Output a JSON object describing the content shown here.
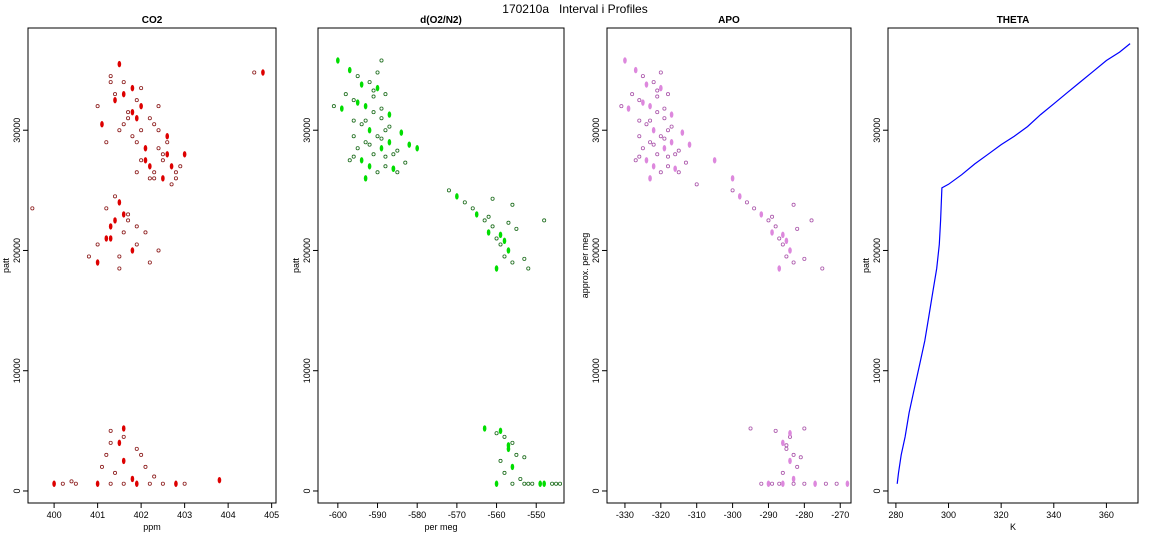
{
  "title": "170210a   Interval i Profiles",
  "chart_data": [
    {
      "type": "scatter",
      "title": "CO2",
      "xlabel": "ppm",
      "ylabel": "patt",
      "xlim": [
        399.4,
        405.1
      ],
      "ylim": [
        -1000,
        38500
      ],
      "xticks": [
        400,
        401,
        402,
        403,
        404,
        405
      ],
      "yticks": [
        0,
        10000,
        20000,
        30000
      ],
      "color": "#dd0000",
      "open_color": "#8b1a1a",
      "x": [
        401.5,
        401.3,
        401.6,
        401.8,
        401.4,
        401.9,
        402.0,
        401.7,
        402.2,
        401.1,
        402.4,
        401.6,
        402.6,
        401.2,
        401.9,
        402.1,
        401.5,
        402.3,
        401.8,
        401.0,
        402.5,
        401.6,
        402.0,
        401.3,
        402.7,
        401.9,
        402.2,
        401.4,
        401.7,
        402.8,
        402.1,
        402.4,
        401.8,
        402.6,
        402.3,
        402.9,
        402.5,
        402.0,
        402.7,
        401.9,
        402.4,
        402.8,
        402.2,
        402.6,
        402.0,
        403.0,
        402.5,
        402.3,
        401.5,
        401.2,
        401.7,
        401.4,
        401.9,
        401.6,
        401.3,
        402.1,
        401.0,
        401.8,
        401.5,
        402.2,
        401.3,
        401.7,
        401.4,
        401.6,
        400.8,
        401.9,
        401.2,
        402.4,
        401.5,
        401.0,
        401.3,
        401.6,
        401.5,
        401.9,
        401.2,
        401.6,
        402.1,
        401.4,
        401.8,
        401.3,
        402.0,
        401.6,
        401.1,
        402.3,
        400.0,
        400.2,
        400.5,
        401.0,
        401.3,
        401.6,
        401.9,
        402.2,
        402.5,
        402.8,
        403.0,
        400.4,
        403.8,
        404.6,
        399.5,
        404.8
      ],
      "y": [
        35500,
        34500,
        34000,
        33500,
        33000,
        32500,
        32000,
        31500,
        31000,
        30500,
        30000,
        30500,
        29500,
        29000,
        29000,
        28500,
        30000,
        30500,
        31500,
        32000,
        28000,
        33000,
        27500,
        34000,
        27000,
        26500,
        26000,
        32500,
        31000,
        26500,
        27500,
        28500,
        29500,
        28000,
        26500,
        27000,
        26000,
        30000,
        25500,
        31000,
        32000,
        26000,
        27000,
        29000,
        33500,
        28000,
        27500,
        26000,
        24000,
        23500,
        23000,
        22500,
        22000,
        21500,
        21000,
        21500,
        20500,
        20000,
        19500,
        19000,
        22000,
        22500,
        24500,
        23000,
        19500,
        20500,
        21000,
        20000,
        18500,
        19000,
        5000,
        4500,
        4000,
        3500,
        3000,
        2500,
        2000,
        1500,
        1000,
        4000,
        3000,
        5200,
        2000,
        1200,
        600,
        600,
        600,
        600,
        600,
        600,
        600,
        600,
        600,
        600,
        600,
        800,
        900,
        34800,
        23500,
        34800
      ]
    },
    {
      "type": "scatter",
      "title": "d(O2/N2)",
      "xlabel": "per meg",
      "ylabel": "patt",
      "xlim": [
        -605,
        -543
      ],
      "ylim": [
        -1000,
        38500
      ],
      "xticks": [
        -600,
        -590,
        -580,
        -570,
        -560,
        -550
      ],
      "yticks": [
        0,
        10000,
        20000,
        30000
      ],
      "color": "#00dd00",
      "open_color": "#1a6b1a",
      "x": [
        -597,
        -595,
        -592,
        -590,
        -598,
        -596,
        -593,
        -591,
        -589,
        -599,
        -594,
        -588,
        -592,
        -596,
        -590,
        -587,
        -593,
        -595,
        -589,
        -586,
        -591,
        -594,
        -597,
        -588,
        -592,
        -590,
        -585,
        -593,
        -596,
        -589,
        -584,
        -591,
        -587,
        -594,
        -592,
        -588,
        -586,
        -590,
        -583,
        -595,
        -593,
        -589,
        -587,
        -591,
        -585,
        -582,
        -596,
        -588,
        -600,
        -601,
        -572,
        -570,
        -568,
        -566,
        -565,
        -563,
        -561,
        -562,
        -560,
        -559,
        -557,
        -558,
        -556,
        -560,
        -562,
        -555,
        -558,
        -553,
        -556,
        -559,
        -561,
        -557,
        -559,
        -558,
        -556,
        -557,
        -555,
        -559,
        -556,
        -558,
        -554,
        -557,
        -553,
        -560,
        -563,
        -553,
        -551,
        -549,
        -546,
        -545,
        -560,
        -556,
        -552,
        -548,
        -544,
        -589,
        -586,
        -552,
        -548,
        -580
      ],
      "y": [
        35000,
        34500,
        34000,
        33500,
        33000,
        32500,
        32000,
        31500,
        31000,
        31800,
        30500,
        30000,
        30000,
        29500,
        29500,
        29000,
        29000,
        28500,
        28500,
        28000,
        28000,
        27500,
        27500,
        27000,
        27000,
        26500,
        26500,
        26000,
        30800,
        31800,
        29800,
        32800,
        30300,
        33800,
        28800,
        27800,
        26800,
        34800,
        27300,
        32300,
        30800,
        29300,
        31300,
        33300,
        28300,
        28800,
        27800,
        33000,
        35800,
        32000,
        25000,
        24500,
        24000,
        23500,
        23000,
        22500,
        22000,
        21500,
        21000,
        20500,
        20000,
        19500,
        19000,
        18500,
        22800,
        21800,
        20800,
        19300,
        23800,
        21300,
        24300,
        22300,
        5000,
        4500,
        4000,
        3500,
        3000,
        2500,
        2000,
        1500,
        1000,
        3800,
        2800,
        4800,
        5200,
        600,
        600,
        600,
        600,
        600,
        600,
        600,
        600,
        600,
        600,
        35800,
        26800,
        18500,
        22500,
        28500
      ]
    },
    {
      "type": "scatter",
      "title": "APO",
      "xlabel": "",
      "ylabel": "approx. per meg",
      "xlim": [
        -335,
        -267
      ],
      "ylim": [
        -1000,
        38500
      ],
      "xticks": [
        -330,
        -320,
        -310,
        -300,
        -290,
        -280,
        -270
      ],
      "yticks": [
        0,
        10000,
        20000,
        30000
      ],
      "color": "#dd88dd",
      "open_color": "#aa55aa",
      "x": [
        -327,
        -325,
        -322,
        -320,
        -328,
        -326,
        -323,
        -321,
        -319,
        -329,
        -324,
        -318,
        -322,
        -326,
        -320,
        -317,
        -323,
        -325,
        -319,
        -316,
        -321,
        -324,
        -327,
        -318,
        -322,
        -320,
        -315,
        -323,
        -326,
        -319,
        -314,
        -321,
        -317,
        -324,
        -322,
        -318,
        -316,
        -320,
        -313,
        -325,
        -323,
        -319,
        -317,
        -321,
        -315,
        -312,
        -326,
        -318,
        -330,
        -331,
        -300,
        -298,
        -296,
        -294,
        -292,
        -290,
        -288,
        -289,
        -287,
        -286,
        -284,
        -285,
        -283,
        -287,
        -289,
        -282,
        -285,
        -280,
        -283,
        -286,
        -288,
        -284,
        -286,
        -285,
        -283,
        -284,
        -282,
        -286,
        -283,
        -285,
        -281,
        -284,
        -280,
        -287,
        -290,
        -292,
        -289,
        -286,
        -283,
        -280,
        -277,
        -274,
        -271,
        -268,
        -295,
        -310,
        -305,
        -275,
        -278,
        -300
      ],
      "y": [
        35000,
        34500,
        34000,
        33500,
        33000,
        32500,
        32000,
        31500,
        31000,
        31800,
        30500,
        30000,
        30000,
        29500,
        29500,
        29000,
        29000,
        28500,
        28500,
        28000,
        28000,
        27500,
        27500,
        27000,
        27000,
        26500,
        26500,
        26000,
        30800,
        31800,
        29800,
        32800,
        30300,
        33800,
        28800,
        27800,
        26800,
        34800,
        27300,
        32300,
        30800,
        29300,
        31300,
        33300,
        28300,
        28800,
        27800,
        33000,
        35800,
        32000,
        25000,
        24500,
        24000,
        23500,
        23000,
        22500,
        22000,
        21500,
        21000,
        20500,
        20000,
        19500,
        19000,
        18500,
        22800,
        21800,
        20800,
        19300,
        23800,
        21300,
        5000,
        4500,
        4000,
        3500,
        3000,
        2500,
        2000,
        1500,
        1000,
        3800,
        2800,
        4800,
        5200,
        600,
        600,
        600,
        600,
        600,
        600,
        600,
        600,
        600,
        600,
        600,
        5200,
        25500,
        27500,
        18500,
        22500,
        26000
      ]
    },
    {
      "type": "line",
      "title": "THETA",
      "xlabel": "K",
      "ylabel": "patt",
      "xlim": [
        277,
        372
      ],
      "ylim": [
        -1000,
        38500
      ],
      "xticks": [
        280,
        300,
        320,
        340,
        360
      ],
      "yticks": [
        0,
        10000,
        20000,
        30000
      ],
      "color": "#0000ff",
      "x": [
        280.5,
        281.0,
        282.0,
        283.5,
        285.0,
        287.0,
        289.0,
        291.0,
        292.5,
        294.0,
        295.5,
        296.5,
        297.0,
        297.5,
        300.0,
        305.0,
        310.0,
        315.0,
        320.0,
        325.0,
        330.0,
        335.0,
        340.0,
        345.0,
        350.0,
        355.0,
        360.0,
        365.0,
        369.0
      ],
      "y": [
        600,
        1500,
        3000,
        4500,
        6500,
        8500,
        10500,
        12500,
        14500,
        16500,
        18500,
        20500,
        22500,
        25200,
        25500,
        26300,
        27200,
        28000,
        28800,
        29500,
        30300,
        31300,
        32200,
        33100,
        34000,
        34900,
        35800,
        36500,
        37200
      ]
    }
  ]
}
